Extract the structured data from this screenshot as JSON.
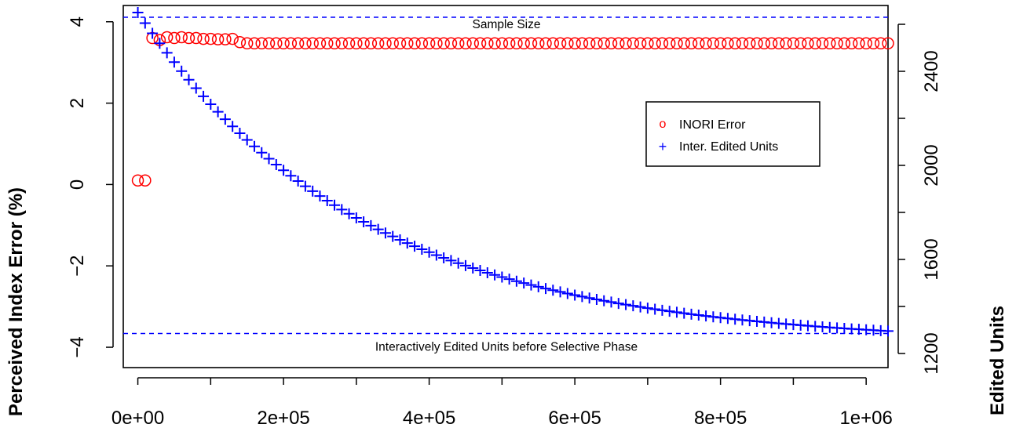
{
  "chart_data": {
    "type": "scatter",
    "ylabel_left": "Perceived Index Error (%)",
    "ylabel_right": "Edited Units",
    "xlim": [
      -20000,
      1030000
    ],
    "ylim_left": [
      -4.5,
      4.4
    ],
    "ylim_right": [
      1140,
      2680
    ],
    "x_ticks": [
      0,
      100000,
      200000,
      300000,
      400000,
      500000,
      600000,
      700000,
      800000,
      900000,
      1000000
    ],
    "x_tick_labels": [
      "0e+00",
      "",
      "2e+05",
      "",
      "4e+05",
      "",
      "6e+05",
      "",
      "8e+05",
      "",
      "1e+06"
    ],
    "y_ticks_left": [
      -4,
      -2,
      0,
      2,
      4
    ],
    "y_tick_labels_left": [
      "−4",
      "−2",
      "0",
      "2",
      "4"
    ],
    "y_ticks_right": [
      1200,
      1400,
      1600,
      1800,
      2000,
      2200,
      2400,
      2600
    ],
    "y_tick_labels_right": [
      "1200",
      "",
      "1600",
      "",
      "2000",
      "",
      "2400",
      ""
    ],
    "reference_lines": [
      {
        "axis": "right",
        "value": 2630,
        "label": "Sample Size",
        "color": "#0000ff",
        "style": "dashed"
      },
      {
        "axis": "right",
        "value": 1285,
        "label": "Interactively Edited Units before Selective Phase",
        "color": "#0000ff",
        "style": "dashed"
      }
    ],
    "legend": {
      "placement": "right",
      "entries": [
        {
          "symbol": "o",
          "label": "INORI Error",
          "color": "#ff0000"
        },
        {
          "symbol": "+",
          "label": "Inter. Edited Units",
          "color": "#0000ff"
        }
      ]
    },
    "series": [
      {
        "label": "INORI Error",
        "axis": "left",
        "marker": "circle",
        "color": "#ff0000",
        "x": [
          0,
          10000,
          20000,
          30000,
          40000,
          50000,
          60000,
          70000,
          80000,
          90000,
          100000,
          110000,
          120000,
          130000,
          140000
        ],
        "y": [
          0.1,
          0.1,
          3.6,
          3.55,
          3.62,
          3.6,
          3.62,
          3.6,
          3.6,
          3.58,
          3.58,
          3.57,
          3.57,
          3.58,
          3.5
        ],
        "tail": {
          "x_start": 150000,
          "x_end": 1030000,
          "step": 10000,
          "y": 3.47
        }
      },
      {
        "label": "Inter. Edited Units",
        "axis": "right",
        "marker": "plus",
        "color": "#0000ff",
        "curve": {
          "x_start": 0,
          "x_end": 1030000,
          "step": 10000,
          "y0": 2650,
          "y_inf": 1270,
          "rate": 3.3e-06,
          "linear": -20
        }
      }
    ]
  }
}
